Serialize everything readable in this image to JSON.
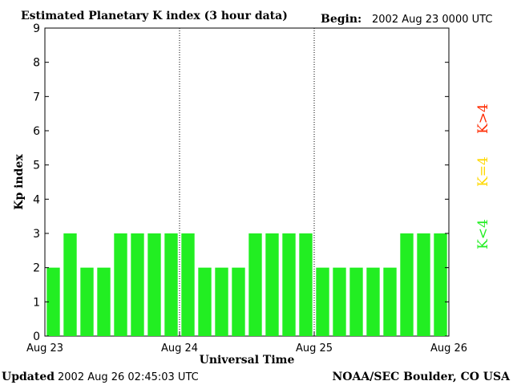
{
  "header": {
    "title": "Estimated Planetary K index (3 hour data)",
    "begin_label": "Begin:",
    "begin_value": "2002 Aug 23 0000 UTC"
  },
  "footer": {
    "updated_label": "Updated",
    "updated_value": "2002 Aug 26 02:45:03 UTC",
    "source": "NOAA/SEC Boulder, CO USA"
  },
  "legend": {
    "items": [
      {
        "label": "K>4",
        "color": "#ff2a00"
      },
      {
        "label": "K=4",
        "color": "#ffd800"
      },
      {
        "label": "K<4",
        "color": "#22ee22"
      }
    ]
  },
  "chart_data": {
    "type": "bar",
    "title": "Estimated Planetary K index (3 hour data)",
    "xlabel": "Universal Time",
    "ylabel": "Kp index",
    "ylim": [
      0,
      9
    ],
    "yticks": [
      0,
      1,
      2,
      3,
      4,
      5,
      6,
      7,
      8,
      9
    ],
    "xticks": [
      "Aug 23",
      "Aug 24",
      "Aug 25",
      "Aug 26"
    ],
    "grid": false,
    "day_separators": true,
    "bar_color": "#22ee22",
    "values": [
      2,
      3,
      2,
      2,
      3,
      3,
      3,
      3,
      3,
      2,
      2,
      2,
      3,
      3,
      3,
      3,
      2,
      2,
      2,
      2,
      2,
      3,
      3,
      3
    ]
  }
}
